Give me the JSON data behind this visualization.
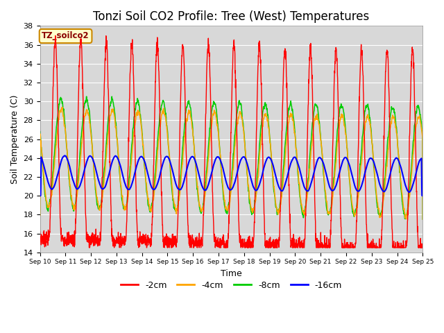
{
  "title": "Tonzi Soil CO2 Profile: Tree (West) Temperatures",
  "xlabel": "Time",
  "ylabel": "Soil Temperature (C)",
  "ylim": [
    14,
    38
  ],
  "yticks": [
    14,
    16,
    18,
    20,
    22,
    24,
    26,
    28,
    30,
    32,
    34,
    36,
    38
  ],
  "xlim_days": 15,
  "xtick_labels": [
    "Sep 10",
    "Sep 11",
    "Sep 12",
    "Sep 13",
    "Sep 14",
    "Sep 15",
    "Sep 16",
    "Sep 17",
    "Sep 18",
    "Sep 19",
    "Sep 20",
    "Sep 21",
    "Sep 22",
    "Sep 23",
    "Sep 24",
    "Sep 25"
  ],
  "series": {
    "-2cm": {
      "color": "#FF0000",
      "label": "-2cm"
    },
    "-4cm": {
      "color": "#FFA500",
      "label": "-4cm"
    },
    "-8cm": {
      "color": "#00CC00",
      "label": "-8cm"
    },
    "-16cm": {
      "color": "#0000FF",
      "label": "-16cm"
    }
  },
  "legend_label": "TZ_soilco2",
  "plot_bg_color": "#D8D8D8",
  "title_fontsize": 12,
  "axis_label_fontsize": 9,
  "tick_fontsize": 8
}
